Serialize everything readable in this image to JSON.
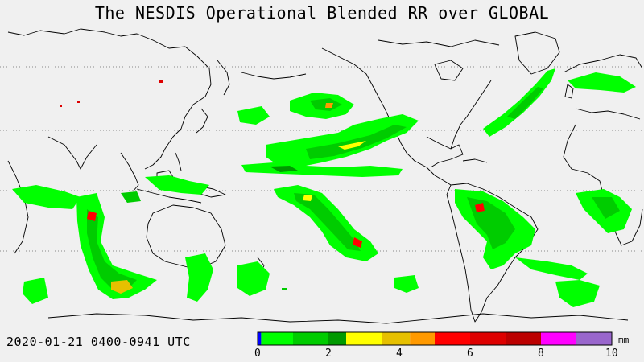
{
  "title": "The NESDIS  Operational  Blended RR over GLOBAL",
  "timestamp": "2020-01-21  0400-0941  UTC",
  "colorbar": {
    "unit": "mm",
    "min": 0,
    "max": 10,
    "tick_labels": [
      "0",
      "2",
      "4",
      "6",
      "8",
      "10"
    ],
    "tick_values": [
      0,
      2,
      4,
      6,
      8,
      10
    ],
    "colors": [
      "#0000ff",
      "#00ff00",
      "#00cc00",
      "#009900",
      "#ffff00",
      "#e6c000",
      "#ff9900",
      "#ff0000",
      "#dd0000",
      "#bb0000",
      "#ff00ff",
      "#9966cc"
    ],
    "bins": [
      [
        0,
        0.1
      ],
      [
        0.1,
        1
      ],
      [
        1,
        2
      ],
      [
        2,
        2.5
      ],
      [
        2.5,
        3.5
      ],
      [
        3.5,
        4.3
      ],
      [
        4.3,
        5
      ],
      [
        5,
        6
      ],
      [
        6,
        7
      ],
      [
        7,
        8
      ],
      [
        8,
        9
      ],
      [
        9,
        10
      ]
    ]
  },
  "map": {
    "background": "#f0f0f0",
    "coastline_color": "#000000",
    "gridline_color": "#888888"
  }
}
